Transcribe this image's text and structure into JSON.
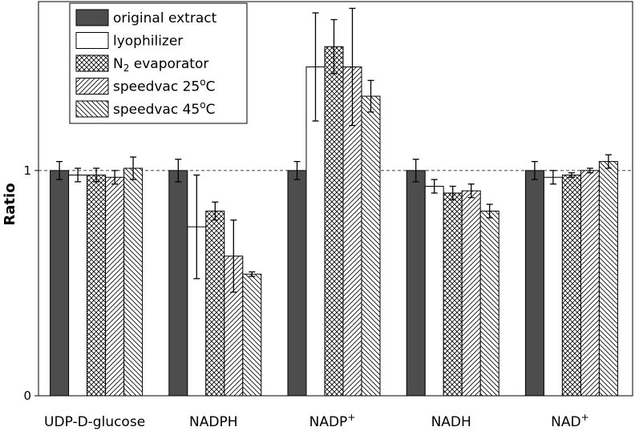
{
  "chart_data": {
    "type": "bar",
    "title": "",
    "xlabel": "",
    "ylabel": "Ratio",
    "ylim": [
      0,
      1.75
    ],
    "y_ticks": [
      {
        "value": 0,
        "label": "0"
      },
      {
        "value": 1,
        "label": "1"
      }
    ],
    "reference_line": {
      "value": 1,
      "style": "dashed"
    },
    "grid": false,
    "legend_position": "top-left",
    "categories": [
      {
        "base": "UDP-D-glucose",
        "sup": ""
      },
      {
        "base": "NADPH",
        "sup": ""
      },
      {
        "base": "NADP",
        "sup": "+"
      },
      {
        "base": "NADH",
        "sup": ""
      },
      {
        "base": "NAD",
        "sup": "+"
      }
    ],
    "series": [
      {
        "name": "original extract",
        "pattern": "solid-dark",
        "values": [
          1.0,
          1.0,
          1.0,
          1.0,
          1.0
        ],
        "errors": [
          0.04,
          0.05,
          0.04,
          0.05,
          0.04
        ]
      },
      {
        "name": "lyophilizer",
        "pattern": "white",
        "values": [
          0.98,
          0.75,
          1.46,
          0.93,
          0.97
        ],
        "errors": [
          0.03,
          0.23,
          0.24,
          0.03,
          0.03
        ]
      },
      {
        "name": "N2 evaporator",
        "label_base": "N",
        "label_sub": "2",
        "label_rest": " evaporator",
        "pattern": "crosshatch",
        "values": [
          0.98,
          0.82,
          1.55,
          0.9,
          0.98
        ],
        "errors": [
          0.03,
          0.04,
          0.12,
          0.03,
          0.01
        ]
      },
      {
        "name": "speedvac 25oC",
        "label_base": "speedvac 25",
        "label_sup": "o",
        "label_rest": "C",
        "pattern": "diag-right",
        "values": [
          0.97,
          0.62,
          1.46,
          0.91,
          1.0
        ],
        "errors": [
          0.03,
          0.16,
          0.26,
          0.03,
          0.01
        ]
      },
      {
        "name": "speedvac 45oC",
        "label_base": "speedvac 45",
        "label_sup": "o",
        "label_rest": "C",
        "pattern": "diag-left",
        "values": [
          1.01,
          0.54,
          1.33,
          0.82,
          1.04
        ],
        "errors": [
          0.05,
          0.01,
          0.07,
          0.03,
          0.03
        ]
      }
    ],
    "colors": {
      "dark_fill": "#4d4d4d",
      "outline": "#000000",
      "background": "#ffffff"
    }
  }
}
